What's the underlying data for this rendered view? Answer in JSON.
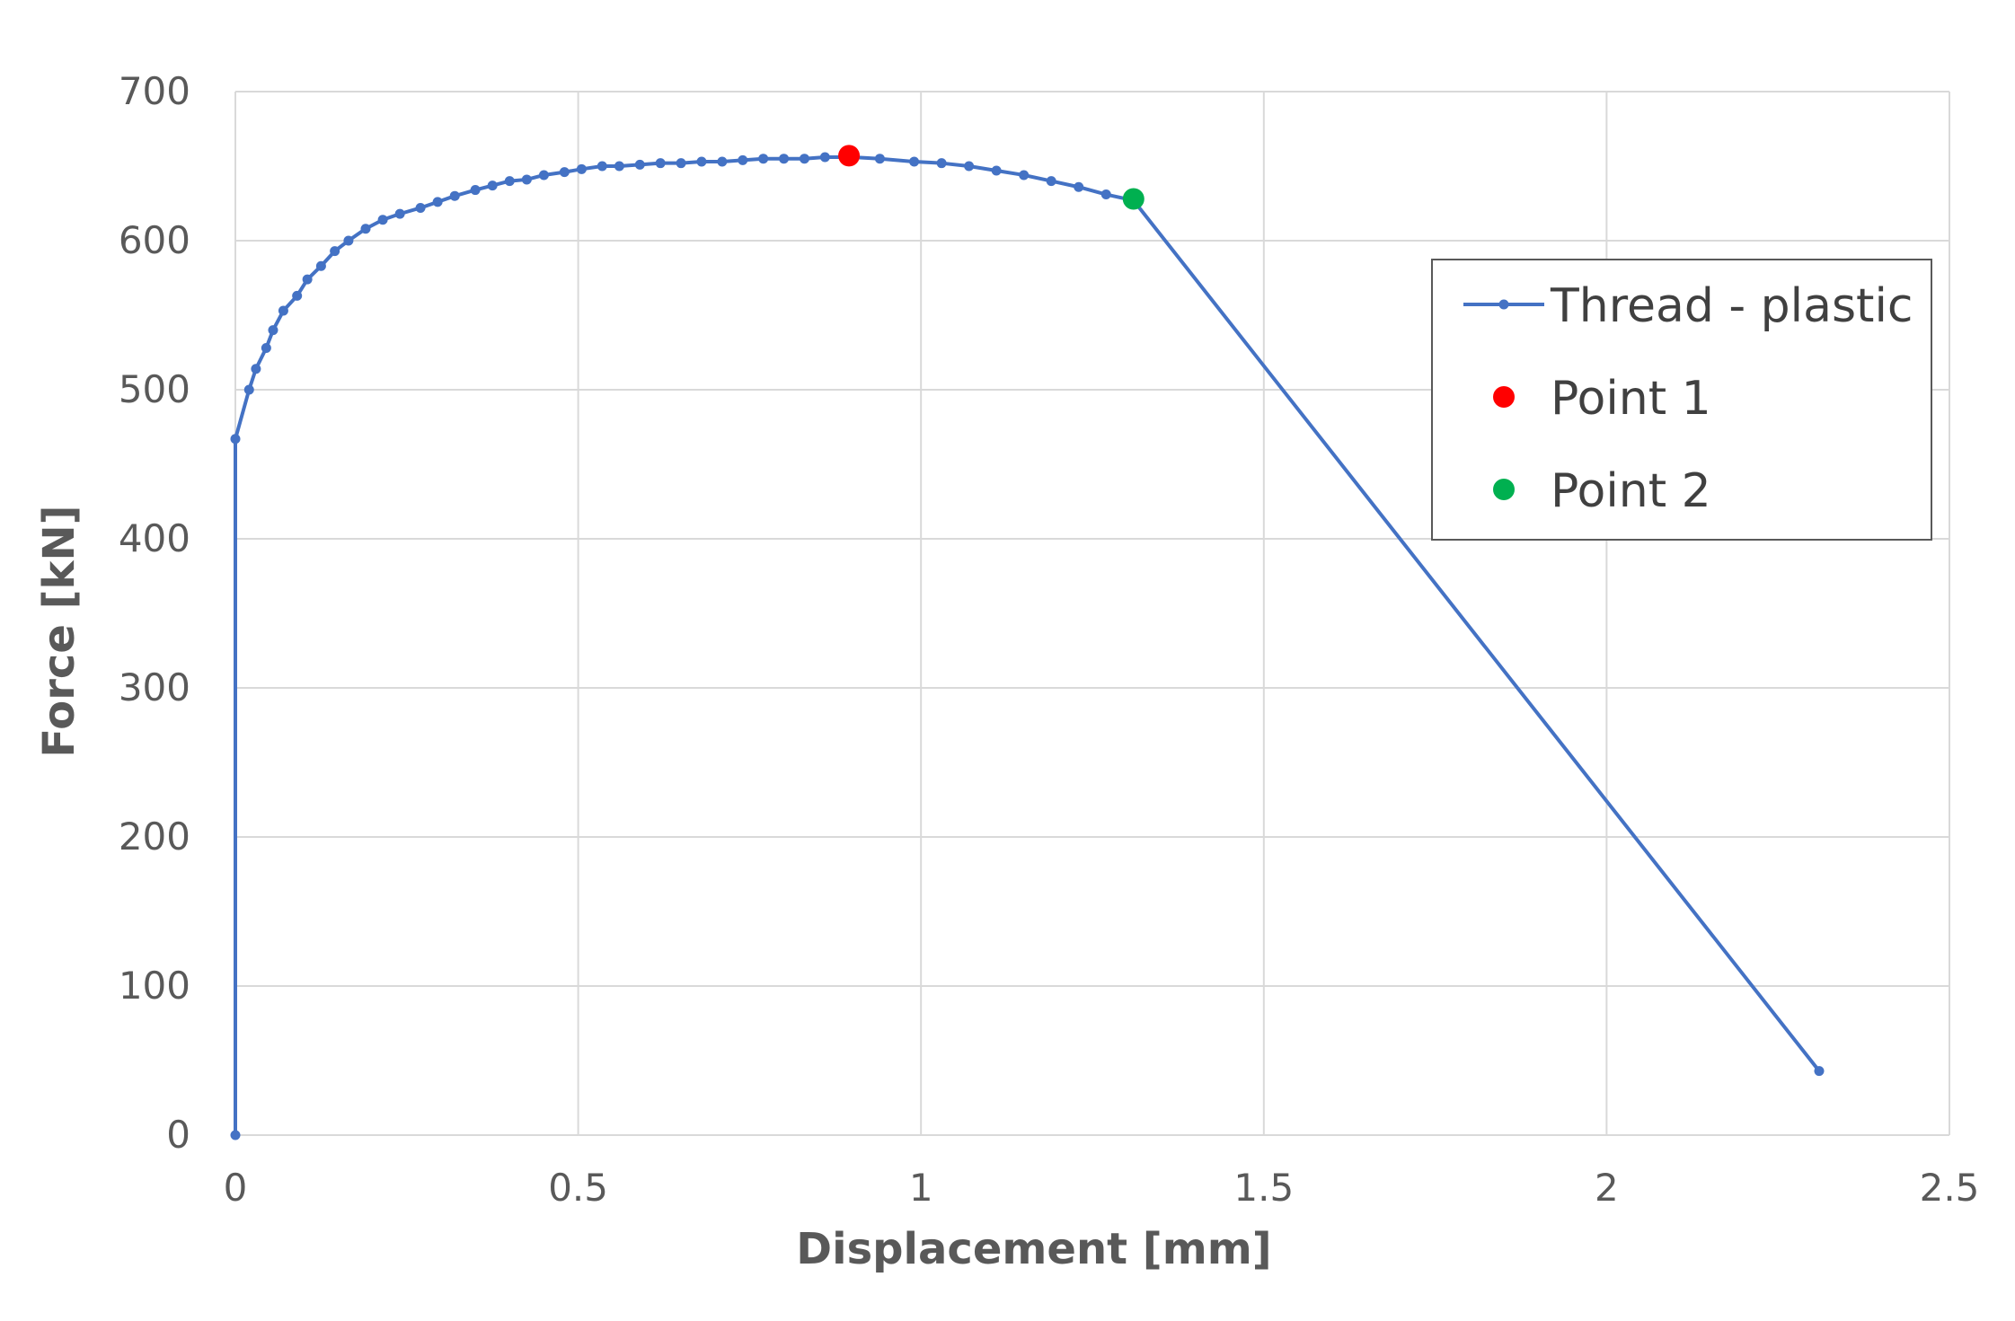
{
  "chart_data": {
    "type": "scatter",
    "title": "",
    "xlabel": "Displacement [mm]",
    "ylabel": "Force [kN]",
    "xlim": [
      0,
      2.5
    ],
    "ylim": [
      0,
      700
    ],
    "x_ticks": [
      "0",
      "0.5",
      "1",
      "1.5",
      "2",
      "2.5"
    ],
    "y_ticks": [
      "0",
      "100",
      "200",
      "300",
      "400",
      "500",
      "600",
      "700"
    ],
    "grid": true,
    "legend_position": "top-right",
    "series": [
      {
        "name": "Thread - plastic",
        "type": "line-markers",
        "color": "#4472C4",
        "x": [
          0,
          0,
          0.02,
          0.03,
          0.045,
          0.055,
          0.07,
          0.09,
          0.105,
          0.125,
          0.145,
          0.165,
          0.19,
          0.215,
          0.24,
          0.27,
          0.295,
          0.32,
          0.35,
          0.375,
          0.4,
          0.425,
          0.45,
          0.48,
          0.505,
          0.535,
          0.56,
          0.59,
          0.62,
          0.65,
          0.68,
          0.71,
          0.74,
          0.77,
          0.8,
          0.83,
          0.86,
          0.9,
          0.94,
          0.99,
          1.03,
          1.07,
          1.11,
          1.15,
          1.19,
          1.23,
          1.27,
          1.31,
          2.31
        ],
        "y": [
          0,
          467,
          500,
          514,
          528,
          540,
          553,
          563,
          574,
          583,
          593,
          600,
          608,
          614,
          618,
          622,
          626,
          630,
          634,
          637,
          640,
          641,
          644,
          646,
          648,
          650,
          650,
          651,
          652,
          652,
          653,
          653,
          654,
          655,
          655,
          655,
          656,
          656,
          655,
          653,
          652,
          650,
          647,
          644,
          640,
          636,
          631,
          627,
          43
        ]
      },
      {
        "name": "Point 1",
        "type": "marker",
        "color": "#FF0000",
        "x": [
          0.895
        ],
        "y": [
          657
        ]
      },
      {
        "name": "Point 2",
        "type": "marker",
        "color": "#00B050",
        "x": [
          1.31
        ],
        "y": [
          628
        ]
      }
    ]
  }
}
